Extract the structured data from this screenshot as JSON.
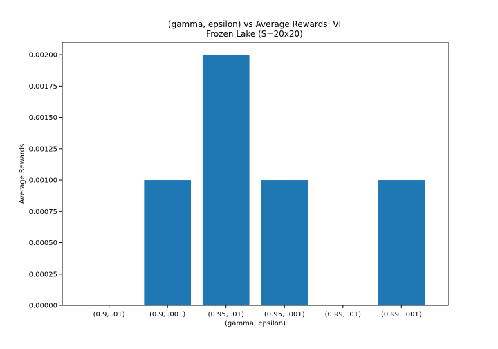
{
  "chart_data": {
    "type": "bar",
    "title": "(gamma, epsilon) vs Average Rewards: VI",
    "subtitle": "Frozen Lake (S=20x20)",
    "xlabel": "(gamma, epsilon)",
    "ylabel": "Average Rewards",
    "categories": [
      "(0.9, .01)",
      "(0.9, .001)",
      "(0.95, .01)",
      "(0.95, .001)",
      "(0.99, .01)",
      "(0.99, .001)"
    ],
    "values": [
      0,
      0.001,
      0.002,
      0.001,
      0,
      0.001
    ],
    "ylim": [
      0,
      0.0021
    ],
    "yticks": [
      "0.00000",
      "0.00025",
      "0.00050",
      "0.00075",
      "0.00100",
      "0.00125",
      "0.00150",
      "0.00175",
      "0.00200"
    ],
    "ytick_values": [
      0,
      0.00025,
      0.0005,
      0.00075,
      0.001,
      0.00125,
      0.0015,
      0.00175,
      0.002
    ],
    "bar_color": "#1f77b4",
    "grid": false,
    "legend": false
  }
}
